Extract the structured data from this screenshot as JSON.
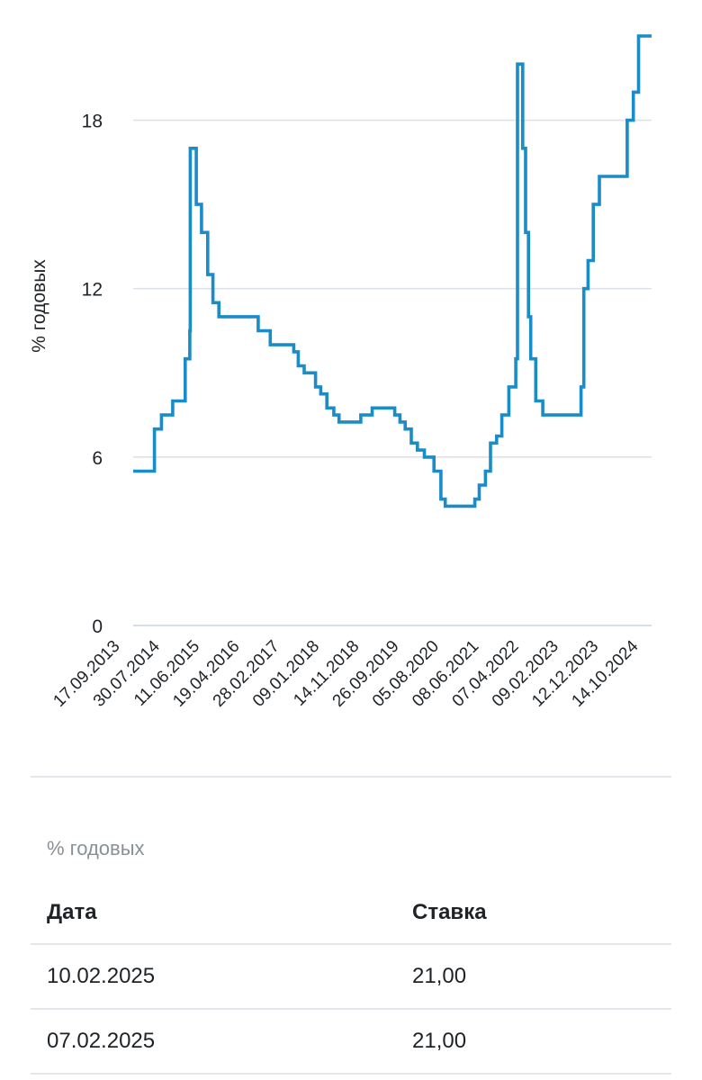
{
  "chart_data": {
    "type": "line",
    "ylabel": "% годовых",
    "ylim": [
      0,
      21
    ],
    "yticks": [
      0,
      6,
      12,
      18
    ],
    "grid": true,
    "x_start": "13.09.2013",
    "x_end": "10.02.2025",
    "xticks": [
      "17.09.2013",
      "30.07.2014",
      "11.06.2015",
      "19.04.2016",
      "28.02.2017",
      "09.01.2018",
      "14.11.2018",
      "26.09.2019",
      "05.08.2020",
      "08.06.2021",
      "07.04.2022",
      "09.02.2023",
      "12.12.2023",
      "14.10.2024"
    ],
    "series": [
      {
        "step": true,
        "color": "#1a8cc7",
        "points": [
          [
            "13.09.2013",
            5.5
          ],
          [
            "03.03.2014",
            7.0
          ],
          [
            "28.04.2014",
            7.5
          ],
          [
            "28.07.2014",
            8.0
          ],
          [
            "05.11.2014",
            9.5
          ],
          [
            "12.12.2014",
            10.5
          ],
          [
            "16.12.2014",
            17.0
          ],
          [
            "02.02.2015",
            15.0
          ],
          [
            "16.03.2015",
            14.0
          ],
          [
            "05.05.2015",
            12.5
          ],
          [
            "16.06.2015",
            11.5
          ],
          [
            "03.08.2015",
            11.0
          ],
          [
            "14.06.2016",
            10.5
          ],
          [
            "19.09.2016",
            10.0
          ],
          [
            "27.03.2017",
            9.75
          ],
          [
            "02.05.2017",
            9.25
          ],
          [
            "19.06.2017",
            9.0
          ],
          [
            "18.09.2017",
            8.5
          ],
          [
            "30.10.2017",
            8.25
          ],
          [
            "18.12.2017",
            7.75
          ],
          [
            "12.02.2018",
            7.5
          ],
          [
            "26.03.2018",
            7.25
          ],
          [
            "17.09.2018",
            7.5
          ],
          [
            "17.12.2018",
            7.75
          ],
          [
            "17.06.2019",
            7.5
          ],
          [
            "29.07.2019",
            7.25
          ],
          [
            "09.09.2019",
            7.0
          ],
          [
            "28.10.2019",
            6.5
          ],
          [
            "16.12.2019",
            6.25
          ],
          [
            "10.02.2020",
            6.0
          ],
          [
            "27.04.2020",
            5.5
          ],
          [
            "22.06.2020",
            4.5
          ],
          [
            "27.07.2020",
            4.25
          ],
          [
            "22.03.2021",
            4.5
          ],
          [
            "26.04.2021",
            5.0
          ],
          [
            "15.06.2021",
            5.5
          ],
          [
            "26.07.2021",
            6.5
          ],
          [
            "13.09.2021",
            6.75
          ],
          [
            "25.10.2021",
            7.5
          ],
          [
            "20.12.2021",
            8.5
          ],
          [
            "14.02.2022",
            9.5
          ],
          [
            "28.02.2022",
            20.0
          ],
          [
            "11.04.2022",
            17.0
          ],
          [
            "04.05.2022",
            14.0
          ],
          [
            "27.05.2022",
            11.0
          ],
          [
            "14.06.2022",
            9.5
          ],
          [
            "25.07.2022",
            8.0
          ],
          [
            "19.09.2022",
            7.5
          ],
          [
            "24.07.2023",
            8.5
          ],
          [
            "15.08.2023",
            12.0
          ],
          [
            "18.09.2023",
            13.0
          ],
          [
            "30.10.2023",
            15.0
          ],
          [
            "18.12.2023",
            16.0
          ],
          [
            "29.07.2024",
            18.0
          ],
          [
            "16.09.2024",
            19.0
          ],
          [
            "28.10.2024",
            21.0
          ],
          [
            "10.02.2025",
            21.0
          ]
        ]
      }
    ]
  },
  "table": {
    "unit": "% годовых",
    "headers": {
      "date": "Дата",
      "rate": "Ставка"
    },
    "rows": [
      {
        "date": "10.02.2025",
        "rate": "21,00"
      },
      {
        "date": "07.02.2025",
        "rate": "21,00"
      }
    ]
  }
}
